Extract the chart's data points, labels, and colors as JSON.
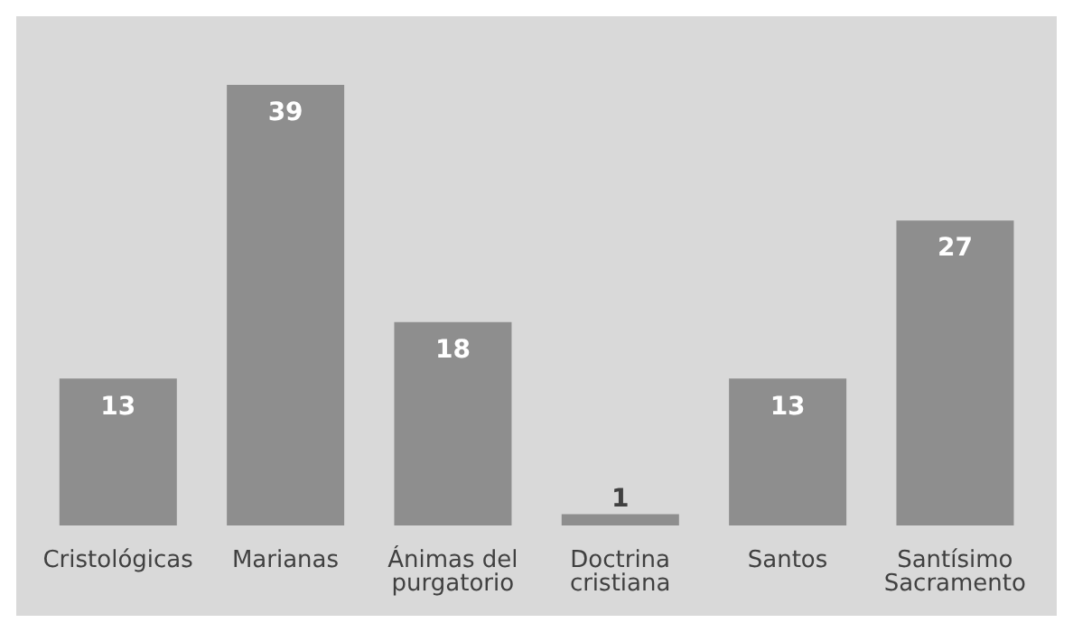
{
  "chart_data": {
    "type": "bar",
    "categories": [
      "Cristológicas",
      "Marianas",
      "Ánimas del purgatorio",
      "Doctrina cristiana",
      "Santos",
      "Santísimo Sacramento"
    ],
    "values": [
      13,
      39,
      18,
      1,
      13,
      27
    ],
    "color": "#8e8e8e",
    "data_labels": true,
    "grid": false,
    "legend": false
  }
}
